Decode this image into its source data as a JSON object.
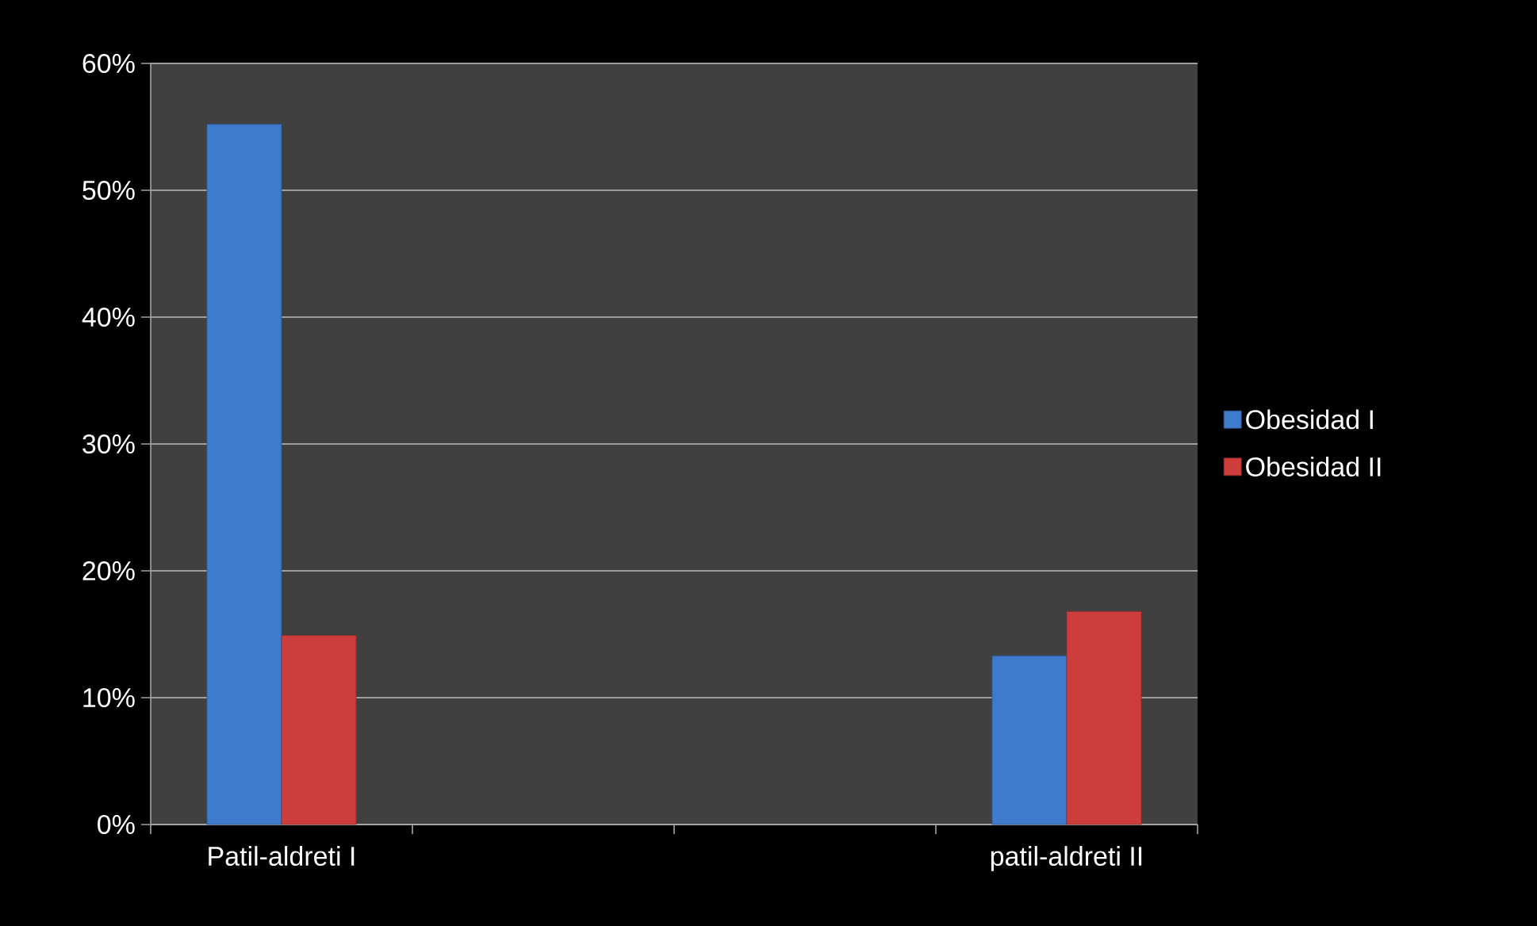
{
  "chart_data": {
    "type": "bar",
    "categories": [
      "Patil-aldreti I",
      null,
      null,
      "patil-aldreti II"
    ],
    "series": [
      {
        "name": "Obesidad I",
        "color": "#3f7bcc",
        "values": [
          55.2,
          null,
          null,
          13.3
        ]
      },
      {
        "name": "Obesidad II",
        "color": "#cc3d3b",
        "values": [
          14.9,
          null,
          null,
          16.8
        ]
      }
    ],
    "ylim": [
      0,
      60
    ],
    "yticks": [
      {
        "value": 0,
        "label": "0%"
      },
      {
        "value": 10,
        "label": "10%"
      },
      {
        "value": 20,
        "label": "20%"
      },
      {
        "value": 30,
        "label": "30%"
      },
      {
        "value": 40,
        "label": "40%"
      },
      {
        "value": 50,
        "label": "50%"
      },
      {
        "value": 60,
        "label": "60%"
      }
    ],
    "grid": "y",
    "legend": "right"
  }
}
